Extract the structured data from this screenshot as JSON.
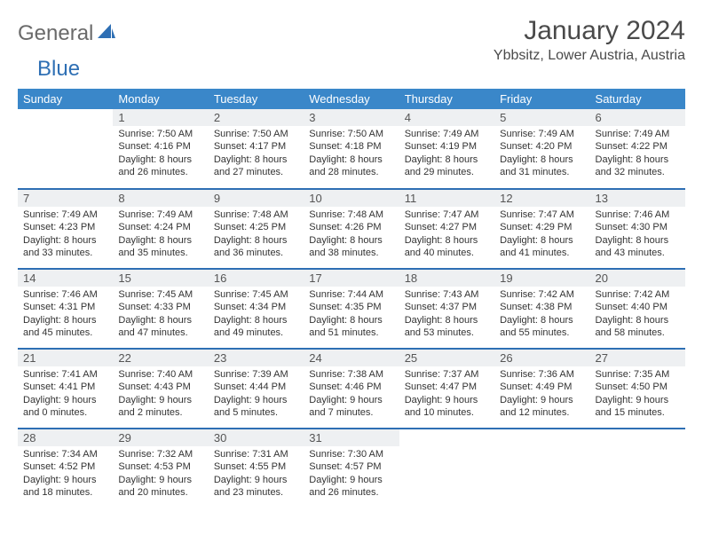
{
  "logo": {
    "general": "General",
    "blue": "Blue"
  },
  "header": {
    "month_title": "January 2024",
    "location": "Ybbsitz, Lower Austria, Austria"
  },
  "colors": {
    "header_bg": "#3a87c9",
    "rule": "#2e6fb4",
    "daynum_bg": "#eef0f2"
  },
  "weekdays": [
    "Sunday",
    "Monday",
    "Tuesday",
    "Wednesday",
    "Thursday",
    "Friday",
    "Saturday"
  ],
  "weeks": [
    [
      {
        "n": "",
        "lines": []
      },
      {
        "n": "1",
        "lines": [
          "Sunrise: 7:50 AM",
          "Sunset: 4:16 PM",
          "Daylight: 8 hours and 26 minutes."
        ]
      },
      {
        "n": "2",
        "lines": [
          "Sunrise: 7:50 AM",
          "Sunset: 4:17 PM",
          "Daylight: 8 hours and 27 minutes."
        ]
      },
      {
        "n": "3",
        "lines": [
          "Sunrise: 7:50 AM",
          "Sunset: 4:18 PM",
          "Daylight: 8 hours and 28 minutes."
        ]
      },
      {
        "n": "4",
        "lines": [
          "Sunrise: 7:49 AM",
          "Sunset: 4:19 PM",
          "Daylight: 8 hours and 29 minutes."
        ]
      },
      {
        "n": "5",
        "lines": [
          "Sunrise: 7:49 AM",
          "Sunset: 4:20 PM",
          "Daylight: 8 hours and 31 minutes."
        ]
      },
      {
        "n": "6",
        "lines": [
          "Sunrise: 7:49 AM",
          "Sunset: 4:22 PM",
          "Daylight: 8 hours and 32 minutes."
        ]
      }
    ],
    [
      {
        "n": "7",
        "lines": [
          "Sunrise: 7:49 AM",
          "Sunset: 4:23 PM",
          "Daylight: 8 hours and 33 minutes."
        ]
      },
      {
        "n": "8",
        "lines": [
          "Sunrise: 7:49 AM",
          "Sunset: 4:24 PM",
          "Daylight: 8 hours and 35 minutes."
        ]
      },
      {
        "n": "9",
        "lines": [
          "Sunrise: 7:48 AM",
          "Sunset: 4:25 PM",
          "Daylight: 8 hours and 36 minutes."
        ]
      },
      {
        "n": "10",
        "lines": [
          "Sunrise: 7:48 AM",
          "Sunset: 4:26 PM",
          "Daylight: 8 hours and 38 minutes."
        ]
      },
      {
        "n": "11",
        "lines": [
          "Sunrise: 7:47 AM",
          "Sunset: 4:27 PM",
          "Daylight: 8 hours and 40 minutes."
        ]
      },
      {
        "n": "12",
        "lines": [
          "Sunrise: 7:47 AM",
          "Sunset: 4:29 PM",
          "Daylight: 8 hours and 41 minutes."
        ]
      },
      {
        "n": "13",
        "lines": [
          "Sunrise: 7:46 AM",
          "Sunset: 4:30 PM",
          "Daylight: 8 hours and 43 minutes."
        ]
      }
    ],
    [
      {
        "n": "14",
        "lines": [
          "Sunrise: 7:46 AM",
          "Sunset: 4:31 PM",
          "Daylight: 8 hours and 45 minutes."
        ]
      },
      {
        "n": "15",
        "lines": [
          "Sunrise: 7:45 AM",
          "Sunset: 4:33 PM",
          "Daylight: 8 hours and 47 minutes."
        ]
      },
      {
        "n": "16",
        "lines": [
          "Sunrise: 7:45 AM",
          "Sunset: 4:34 PM",
          "Daylight: 8 hours and 49 minutes."
        ]
      },
      {
        "n": "17",
        "lines": [
          "Sunrise: 7:44 AM",
          "Sunset: 4:35 PM",
          "Daylight: 8 hours and 51 minutes."
        ]
      },
      {
        "n": "18",
        "lines": [
          "Sunrise: 7:43 AM",
          "Sunset: 4:37 PM",
          "Daylight: 8 hours and 53 minutes."
        ]
      },
      {
        "n": "19",
        "lines": [
          "Sunrise: 7:42 AM",
          "Sunset: 4:38 PM",
          "Daylight: 8 hours and 55 minutes."
        ]
      },
      {
        "n": "20",
        "lines": [
          "Sunrise: 7:42 AM",
          "Sunset: 4:40 PM",
          "Daylight: 8 hours and 58 minutes."
        ]
      }
    ],
    [
      {
        "n": "21",
        "lines": [
          "Sunrise: 7:41 AM",
          "Sunset: 4:41 PM",
          "Daylight: 9 hours and 0 minutes."
        ]
      },
      {
        "n": "22",
        "lines": [
          "Sunrise: 7:40 AM",
          "Sunset: 4:43 PM",
          "Daylight: 9 hours and 2 minutes."
        ]
      },
      {
        "n": "23",
        "lines": [
          "Sunrise: 7:39 AM",
          "Sunset: 4:44 PM",
          "Daylight: 9 hours and 5 minutes."
        ]
      },
      {
        "n": "24",
        "lines": [
          "Sunrise: 7:38 AM",
          "Sunset: 4:46 PM",
          "Daylight: 9 hours and 7 minutes."
        ]
      },
      {
        "n": "25",
        "lines": [
          "Sunrise: 7:37 AM",
          "Sunset: 4:47 PM",
          "Daylight: 9 hours and 10 minutes."
        ]
      },
      {
        "n": "26",
        "lines": [
          "Sunrise: 7:36 AM",
          "Sunset: 4:49 PM",
          "Daylight: 9 hours and 12 minutes."
        ]
      },
      {
        "n": "27",
        "lines": [
          "Sunrise: 7:35 AM",
          "Sunset: 4:50 PM",
          "Daylight: 9 hours and 15 minutes."
        ]
      }
    ],
    [
      {
        "n": "28",
        "lines": [
          "Sunrise: 7:34 AM",
          "Sunset: 4:52 PM",
          "Daylight: 9 hours and 18 minutes."
        ]
      },
      {
        "n": "29",
        "lines": [
          "Sunrise: 7:32 AM",
          "Sunset: 4:53 PM",
          "Daylight: 9 hours and 20 minutes."
        ]
      },
      {
        "n": "30",
        "lines": [
          "Sunrise: 7:31 AM",
          "Sunset: 4:55 PM",
          "Daylight: 9 hours and 23 minutes."
        ]
      },
      {
        "n": "31",
        "lines": [
          "Sunrise: 7:30 AM",
          "Sunset: 4:57 PM",
          "Daylight: 9 hours and 26 minutes."
        ]
      },
      {
        "n": "",
        "lines": []
      },
      {
        "n": "",
        "lines": []
      },
      {
        "n": "",
        "lines": []
      }
    ]
  ]
}
